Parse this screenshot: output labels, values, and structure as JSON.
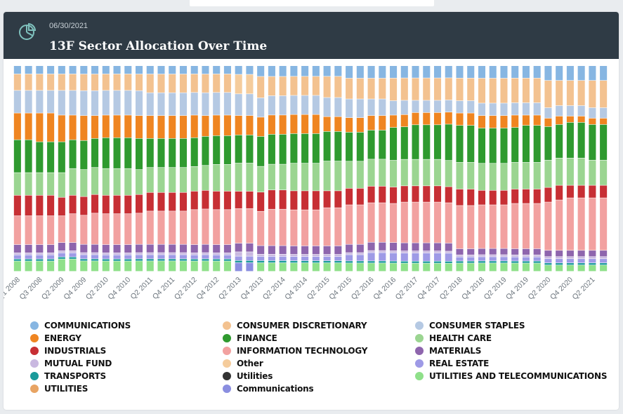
{
  "header": {
    "date": "06/30/2021",
    "title": "13F Sector Allocation Over Time",
    "icon": "pie-chart-icon"
  },
  "colors": {
    "header_bg": "#2f3b45",
    "icon": "#7fc1bd"
  },
  "chart_data": {
    "type": "bar",
    "stacked": true,
    "normalized": true,
    "title": "13F Sector Allocation Over Time",
    "xlabel": "",
    "ylabel": "",
    "ylim": [
      0,
      100
    ],
    "x_tick_labels": [
      "Q1 2008",
      "Q3 2008",
      "Q2 2009",
      "Q4 2009",
      "Q2 2010",
      "Q4 2010",
      "Q2 2011",
      "Q4 2011",
      "Q2 2012",
      "Q4 2012",
      "Q2 2013",
      "Q4 2013",
      "Q2 2014",
      "Q4 2014",
      "Q2 2015",
      "Q4 2015",
      "Q2 2016",
      "Q4 2016",
      "Q2 2017",
      "Q4 2017",
      "Q2 2018",
      "Q4 2018",
      "Q2 2019",
      "Q4 2019",
      "Q2 2020",
      "Q4 2020",
      "Q2 2021"
    ],
    "categories": [
      "Q1 2008",
      "Q2 2008",
      "Q3 2008",
      "Q4 2008",
      "Q1 2009",
      "Q2 2009",
      "Q3 2009",
      "Q4 2009",
      "Q1 2010",
      "Q2 2010",
      "Q3 2010",
      "Q4 2010",
      "Q1 2011",
      "Q2 2011",
      "Q3 2011",
      "Q4 2011",
      "Q1 2012",
      "Q2 2012",
      "Q3 2012",
      "Q4 2012",
      "Q1 2013",
      "Q2 2013",
      "Q3 2013",
      "Q4 2013",
      "Q1 2014",
      "Q2 2014",
      "Q3 2014",
      "Q4 2014",
      "Q1 2015",
      "Q2 2015",
      "Q3 2015",
      "Q4 2015",
      "Q1 2016",
      "Q2 2016",
      "Q3 2016",
      "Q4 2016",
      "Q1 2017",
      "Q2 2017",
      "Q3 2017",
      "Q4 2017",
      "Q1 2018",
      "Q2 2018",
      "Q3 2018",
      "Q4 2018",
      "Q1 2019",
      "Q2 2019",
      "Q3 2019",
      "Q4 2019",
      "Q1 2020",
      "Q2 2020",
      "Q3 2020",
      "Q4 2020",
      "Q1 2021",
      "Q2 2021"
    ],
    "series": [
      {
        "name": "UTILITIES AND TELECOMMUNICATIONS",
        "color": "#8fe08a",
        "values": [
          5,
          5,
          5,
          5,
          6,
          6,
          5,
          5,
          5,
          5,
          5,
          5,
          5,
          5,
          5,
          5,
          5,
          5,
          5,
          5,
          0,
          0,
          4,
          4,
          4,
          4,
          4,
          4,
          4,
          4,
          4,
          4,
          4,
          4,
          4,
          4,
          4,
          4,
          4,
          4,
          4,
          4,
          4,
          4,
          4,
          4,
          4,
          4,
          3,
          3,
          3,
          3,
          3,
          3
        ]
      },
      {
        "name": "Communications",
        "color": "#8a8ee0",
        "values": [
          0,
          0,
          0,
          0,
          0,
          0,
          0,
          0,
          0,
          0,
          0,
          0,
          0,
          0,
          0,
          0,
          0,
          0,
          0,
          0,
          4,
          4,
          0,
          0,
          0,
          0,
          0,
          0,
          0,
          0,
          0,
          0,
          0,
          0,
          0,
          0,
          0,
          0,
          0,
          0,
          0,
          0,
          0,
          0,
          0,
          0,
          0,
          0,
          0,
          0,
          0,
          0,
          0,
          0
        ]
      },
      {
        "name": "UTILITIES",
        "color": "#e8a463",
        "values": [
          0,
          0,
          0,
          0,
          0,
          0,
          0,
          0,
          0,
          0,
          0,
          0,
          0,
          0,
          0,
          0,
          0,
          0,
          0,
          0,
          0,
          0,
          0,
          0,
          0,
          0,
          0,
          0,
          0,
          0,
          0,
          0,
          0,
          0,
          0,
          0,
          0,
          0,
          0,
          0,
          0,
          0,
          0,
          0,
          0,
          0,
          0,
          0,
          0,
          0,
          0,
          0,
          0,
          0
        ]
      },
      {
        "name": "Utilities",
        "color": "#333333",
        "values": [
          0,
          0,
          0,
          0,
          0,
          0,
          0,
          0,
          0,
          0,
          0,
          0,
          0,
          0,
          0,
          0,
          0,
          0,
          0,
          0,
          0,
          0,
          0,
          0,
          0,
          0,
          0,
          0,
          0,
          0,
          0,
          0,
          0,
          0,
          0,
          0,
          0,
          0,
          0,
          0,
          0,
          0,
          0,
          0,
          0,
          0,
          0,
          0,
          0,
          0,
          0,
          0,
          0,
          0
        ]
      },
      {
        "name": "TRANSPORTS",
        "color": "#1a9a9a",
        "values": [
          1,
          1,
          1,
          1,
          1,
          1,
          1,
          1,
          1,
          1,
          1,
          1,
          1,
          1,
          1,
          1,
          1,
          1,
          1,
          1,
          1,
          1,
          1,
          1,
          1,
          1,
          1,
          1,
          1,
          1,
          1,
          1,
          1,
          1,
          1,
          1,
          1,
          1,
          1,
          1,
          1,
          1,
          1,
          1,
          1,
          1,
          1,
          1,
          1,
          1,
          1,
          1,
          1,
          1
        ]
      },
      {
        "name": "REAL ESTATE",
        "color": "#9e9ae6",
        "values": [
          2,
          2,
          2,
          2,
          2,
          2,
          2,
          2,
          2,
          2,
          2,
          2,
          2,
          2,
          2,
          2,
          2,
          2,
          2,
          2,
          2,
          2,
          2,
          2,
          2,
          2,
          2,
          2,
          2,
          2,
          3,
          3,
          4,
          4,
          4,
          4,
          4,
          4,
          4,
          4,
          2,
          2,
          2,
          2,
          2,
          2,
          2,
          2,
          2,
          2,
          2,
          2,
          2,
          2
        ]
      },
      {
        "name": "MUTUAL FUND",
        "color": "#c9b8e0",
        "values": [
          1,
          1,
          1,
          1,
          1,
          1,
          1,
          1,
          1,
          1,
          1,
          1,
          1,
          1,
          1,
          1,
          1,
          1,
          1,
          1,
          2,
          2,
          1,
          1,
          1,
          1,
          1,
          1,
          1,
          1,
          1,
          1,
          1,
          1,
          1,
          1,
          1,
          1,
          1,
          1,
          1,
          1,
          1,
          1,
          1,
          1,
          1,
          1,
          1,
          1,
          1,
          1,
          1,
          1
        ]
      },
      {
        "name": "MATERIALS",
        "color": "#8e65ad",
        "values": [
          4,
          4,
          4,
          4,
          4,
          4,
          4,
          4,
          4,
          4,
          4,
          4,
          4,
          4,
          4,
          4,
          4,
          4,
          4,
          4,
          4,
          4,
          4,
          4,
          4,
          4,
          4,
          4,
          4,
          4,
          4,
          4,
          4,
          4,
          4,
          4,
          4,
          4,
          4,
          4,
          3,
          3,
          3,
          3,
          3,
          3,
          3,
          3,
          3,
          3,
          3,
          3,
          3,
          3
        ]
      },
      {
        "name": "INFORMATION TECHNOLOGY",
        "color": "#f2a1a0",
        "values": [
          14,
          14,
          14,
          14,
          13,
          14,
          14,
          15,
          15,
          15,
          15,
          15,
          16,
          16,
          16,
          16,
          17,
          17,
          17,
          17,
          16,
          16,
          16,
          17,
          17,
          17,
          17,
          17,
          18,
          18,
          19,
          19,
          19,
          19,
          19,
          20,
          20,
          20,
          20,
          20,
          21,
          21,
          21,
          21,
          21,
          22,
          22,
          22,
          23,
          24,
          25,
          25,
          25,
          25
        ]
      },
      {
        "name": "INDUSTRIALS",
        "color": "#c72f34",
        "values": [
          10,
          10,
          10,
          10,
          9,
          9,
          9,
          9,
          9,
          9,
          9,
          9,
          9,
          9,
          9,
          9,
          9,
          9,
          9,
          9,
          8,
          8,
          9,
          9,
          9,
          9,
          9,
          9,
          8,
          8,
          8,
          8,
          8,
          8,
          8,
          8,
          8,
          8,
          8,
          8,
          8,
          8,
          7,
          7,
          7,
          7,
          7,
          7,
          7,
          7,
          6,
          6,
          6,
          6
        ]
      },
      {
        "name": "HEALTH CARE",
        "color": "#9bd591",
        "values": [
          11,
          11,
          11,
          11,
          12,
          13,
          13,
          13,
          13,
          13,
          13,
          12,
          12,
          12,
          12,
          12,
          12,
          12,
          13,
          13,
          13,
          13,
          12,
          12,
          12,
          13,
          13,
          13,
          14,
          14,
          13,
          13,
          13,
          13,
          13,
          13,
          13,
          13,
          13,
          13,
          13,
          13,
          13,
          13,
          13,
          13,
          13,
          13,
          13,
          13,
          13,
          13,
          12,
          12
        ]
      },
      {
        "name": "FINANCE",
        "color": "#2f9a2f",
        "values": [
          16,
          16,
          15,
          15,
          15,
          14,
          14,
          14,
          15,
          15,
          15,
          15,
          14,
          14,
          14,
          14,
          14,
          14,
          14,
          14,
          13,
          13,
          14,
          14,
          14,
          14,
          14,
          14,
          14,
          14,
          14,
          14,
          14,
          14,
          16,
          16,
          17,
          17,
          17,
          18,
          18,
          18,
          17,
          17,
          17,
          17,
          18,
          18,
          16,
          16,
          17,
          17,
          17,
          17
        ]
      },
      {
        "name": "ENERGY",
        "color": "#ef8521",
        "values": [
          13,
          13,
          14,
          14,
          13,
          12,
          12,
          11,
          11,
          11,
          11,
          11,
          11,
          11,
          11,
          11,
          11,
          10,
          10,
          10,
          9,
          9,
          9,
          9,
          9,
          9,
          9,
          9,
          7,
          7,
          7,
          7,
          7,
          7,
          6,
          6,
          6,
          6,
          6,
          6,
          6,
          6,
          6,
          6,
          6,
          6,
          5,
          5,
          4,
          4,
          3,
          3,
          3,
          3
        ]
      },
      {
        "name": "CONSUMER STAPLES",
        "color": "#b5c9e3",
        "values": [
          11,
          11,
          11,
          11,
          12,
          12,
          12,
          12,
          12,
          12,
          12,
          12,
          11,
          11,
          11,
          11,
          11,
          11,
          11,
          11,
          10,
          10,
          9,
          9,
          9,
          9,
          9,
          9,
          9,
          9,
          9,
          9,
          8,
          8,
          7,
          7,
          6,
          6,
          6,
          6,
          6,
          6,
          6,
          6,
          6,
          6,
          6,
          6,
          5,
          5,
          5,
          5,
          5,
          5
        ]
      },
      {
        "name": "CONSUMER DISCRETIONARY",
        "color": "#f3c290",
        "values": [
          8,
          8,
          8,
          8,
          8,
          8,
          8,
          8,
          8,
          8,
          8,
          8,
          9,
          9,
          9,
          9,
          9,
          9,
          9,
          9,
          0,
          0,
          10,
          9,
          9,
          9,
          9,
          9,
          10,
          10,
          10,
          10,
          10,
          10,
          11,
          11,
          11,
          11,
          11,
          11,
          11,
          11,
          12,
          12,
          12,
          12,
          12,
          12,
          13,
          12,
          12,
          12,
          13,
          13
        ]
      },
      {
        "name": "Other",
        "color": "#f5cc9c",
        "values": [
          0,
          0,
          0,
          0,
          0,
          0,
          0,
          0,
          0,
          0,
          0,
          0,
          0,
          0,
          0,
          0,
          0,
          0,
          0,
          0,
          9,
          9,
          0,
          0,
          0,
          0,
          0,
          0,
          0,
          0,
          0,
          0,
          0,
          0,
          0,
          0,
          0,
          0,
          0,
          0,
          0,
          0,
          0,
          0,
          0,
          0,
          0,
          0,
          0,
          0,
          0,
          0,
          0,
          0
        ]
      },
      {
        "name": "COMMUNICATIONS",
        "color": "#87b6e2",
        "values": [
          4,
          4,
          4,
          4,
          4,
          4,
          4,
          4,
          4,
          4,
          4,
          4,
          4,
          4,
          4,
          4,
          4,
          4,
          4,
          4,
          4,
          4,
          5,
          5,
          5,
          5,
          5,
          5,
          5,
          5,
          6,
          6,
          6,
          6,
          6,
          6,
          6,
          6,
          6,
          6,
          6,
          6,
          6,
          6,
          6,
          6,
          6,
          6,
          7,
          7,
          7,
          7,
          7,
          7
        ]
      }
    ],
    "legend": {
      "placement": "bottom",
      "columns": 3,
      "entries": [
        {
          "label": "COMMUNICATIONS",
          "color": "#87b6e2"
        },
        {
          "label": "CONSUMER DISCRETIONARY",
          "color": "#f3c290"
        },
        {
          "label": "CONSUMER STAPLES",
          "color": "#b5c9e3"
        },
        {
          "label": "ENERGY",
          "color": "#ef8521"
        },
        {
          "label": "FINANCE",
          "color": "#2f9a2f"
        },
        {
          "label": "HEALTH CARE",
          "color": "#9bd591"
        },
        {
          "label": "INDUSTRIALS",
          "color": "#c72f34"
        },
        {
          "label": "INFORMATION TECHNOLOGY",
          "color": "#f2a1a0"
        },
        {
          "label": "MATERIALS",
          "color": "#8e65ad"
        },
        {
          "label": "MUTUAL FUND",
          "color": "#c9b8e0"
        },
        {
          "label": "Other",
          "color": "#f5cc9c"
        },
        {
          "label": "REAL ESTATE",
          "color": "#9e9ae6"
        },
        {
          "label": "TRANSPORTS",
          "color": "#1a9a9a"
        },
        {
          "label": "Utilities",
          "color": "#333333"
        },
        {
          "label": "UTILITIES AND TELECOMMUNICATIONS",
          "color": "#8fe08a"
        },
        {
          "label": "UTILITIES",
          "color": "#e8a463"
        },
        {
          "label": "Communications",
          "color": "#8a8ee0"
        }
      ]
    }
  }
}
